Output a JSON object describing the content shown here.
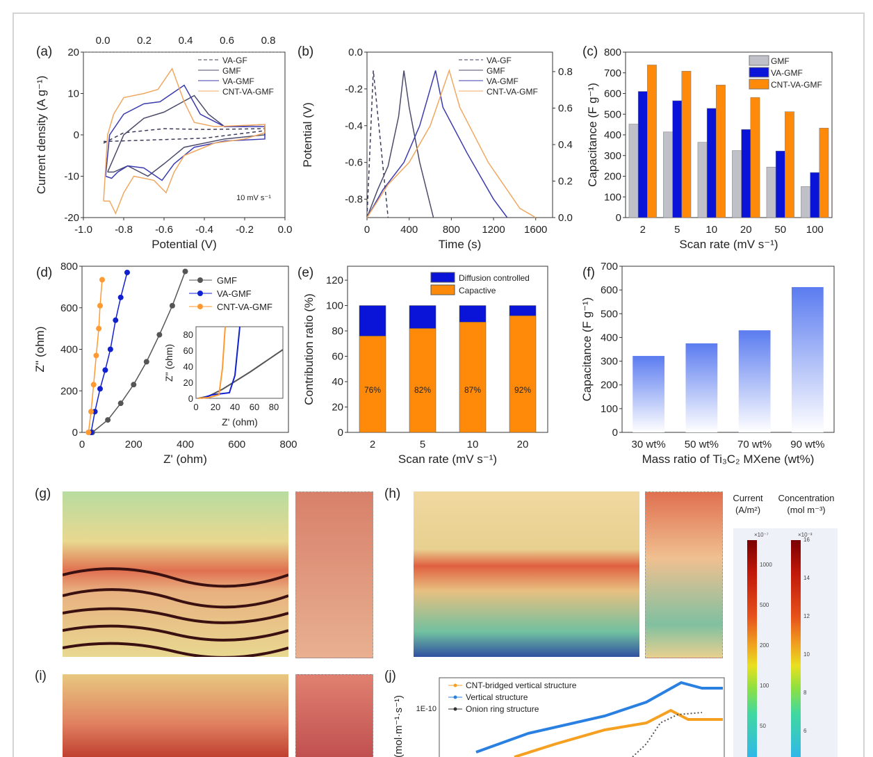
{
  "panel_labels": [
    "(a)",
    "(b)",
    "(c)",
    "(d)",
    "(e)",
    "(f)",
    "(g)",
    "(h)",
    "(i)",
    "(j)"
  ],
  "colorbars": {
    "current": {
      "title": "Current",
      "unit": "(A/m²)",
      "multiplier": "×10⁻⁷",
      "ticks": [
        "1000",
        "500",
        "200",
        "100",
        "50"
      ]
    },
    "concentration": {
      "title": "Concentration",
      "unit": "(mol m⁻³)",
      "multiplier": "×10⁻³",
      "ticks": [
        "16",
        "14",
        "12",
        "10",
        "8",
        "6"
      ]
    }
  },
  "colors": {
    "gmf": "#b8b8b8",
    "vagmf": "#0a14d8",
    "cnt": "#ff8a0a",
    "dark": "#4a4a6a",
    "blue_line": "#3b3bb0",
    "orange_line": "#f0a860"
  },
  "chart_data": [
    {
      "id": "a",
      "type": "line",
      "xlabel": "Potential (V)",
      "ylabel": "Current density (A g⁻¹)",
      "xlim": [
        -1.0,
        0.0
      ],
      "ylim": [
        -20,
        20
      ],
      "xticks": [
        "-1.0",
        "-0.8",
        "-0.6",
        "-0.4",
        "-0.2",
        "0.0"
      ],
      "yticks": [
        "-20",
        "-10",
        "0",
        "10",
        "20"
      ],
      "top_xticks": [
        "0.0",
        "0.2",
        "0.4",
        "0.6",
        "0.8"
      ],
      "annotation": "10 mV s⁻¹",
      "series": [
        {
          "name": "VA-GF",
          "dash": true,
          "color": "#3a3a5a",
          "points": [
            [
              -0.9,
              -2
            ],
            [
              -0.8,
              0.5
            ],
            [
              -0.6,
              1.5
            ],
            [
              -0.4,
              1.3
            ],
            [
              -0.1,
              1.5
            ],
            [
              -0.1,
              1
            ],
            [
              -0.4,
              -0.8
            ],
            [
              -0.7,
              -1.3
            ],
            [
              -0.9,
              -1.6
            ]
          ]
        },
        {
          "name": "GMF",
          "color": "#4a4a6a",
          "points": [
            [
              -0.88,
              -9
            ],
            [
              -0.8,
              0
            ],
            [
              -0.7,
              4
            ],
            [
              -0.6,
              5.5
            ],
            [
              -0.45,
              9.5
            ],
            [
              -0.38,
              5
            ],
            [
              -0.3,
              2
            ],
            [
              -0.1,
              2.5
            ],
            [
              -0.1,
              0
            ],
            [
              -0.3,
              -1
            ],
            [
              -0.5,
              -3
            ],
            [
              -0.6,
              -7
            ],
            [
              -0.68,
              -10
            ],
            [
              -0.78,
              -7.5
            ],
            [
              -0.85,
              -9
            ],
            [
              -0.88,
              -9
            ]
          ]
        },
        {
          "name": "VA-GMF",
          "color": "#3b3bb0",
          "points": [
            [
              -0.89,
              -10
            ],
            [
              -0.87,
              0
            ],
            [
              -0.8,
              5
            ],
            [
              -0.7,
              7.5
            ],
            [
              -0.62,
              8
            ],
            [
              -0.5,
              12
            ],
            [
              -0.42,
              5
            ],
            [
              -0.3,
              2
            ],
            [
              -0.1,
              2
            ],
            [
              -0.1,
              -1
            ],
            [
              -0.3,
              -1.5
            ],
            [
              -0.45,
              -3
            ],
            [
              -0.55,
              -7
            ],
            [
              -0.61,
              -11
            ],
            [
              -0.7,
              -8
            ],
            [
              -0.78,
              -7.5
            ],
            [
              -0.83,
              -9
            ],
            [
              -0.86,
              -10.5
            ],
            [
              -0.89,
              -10
            ]
          ]
        },
        {
          "name": "CNT-VA-GMF",
          "color": "#f0a860",
          "points": [
            [
              -0.9,
              -16
            ],
            [
              -0.88,
              0
            ],
            [
              -0.85,
              5
            ],
            [
              -0.8,
              9
            ],
            [
              -0.7,
              10
            ],
            [
              -0.63,
              11
            ],
            [
              -0.56,
              16
            ],
            [
              -0.5,
              8
            ],
            [
              -0.45,
              3
            ],
            [
              -0.35,
              2
            ],
            [
              -0.1,
              2.5
            ],
            [
              -0.1,
              0.5
            ],
            [
              -0.2,
              -1
            ],
            [
              -0.35,
              -2
            ],
            [
              -0.5,
              -5
            ],
            [
              -0.55,
              -9
            ],
            [
              -0.59,
              -14
            ],
            [
              -0.65,
              -11
            ],
            [
              -0.75,
              -10
            ],
            [
              -0.8,
              -14
            ],
            [
              -0.84,
              -19
            ],
            [
              -0.87,
              -16
            ],
            [
              -0.9,
              -16
            ]
          ]
        }
      ]
    },
    {
      "id": "b",
      "type": "line",
      "xlabel": "Time (s)",
      "ylabel": "Potential (V)",
      "xlim": [
        0,
        1760
      ],
      "ylim": [
        -0.9,
        0.0
      ],
      "xticks": [
        "0",
        "400",
        "800",
        "1200",
        "1600"
      ],
      "yticks": [
        "-0.8",
        "-0.6",
        "-0.4",
        "-0.2",
        "0.0"
      ],
      "right_yticks": [
        "0.0",
        "0.2",
        "0.4",
        "0.6",
        "0.8"
      ],
      "series": [
        {
          "name": "VA-GF",
          "dash": true,
          "color": "#3a3a5a",
          "points": [
            [
              0,
              -0.9
            ],
            [
              60,
              -0.1
            ],
            [
              200,
              -0.9
            ]
          ]
        },
        {
          "name": "GMF",
          "color": "#4a4a6a",
          "points": [
            [
              0,
              -0.9
            ],
            [
              100,
              -0.75
            ],
            [
              200,
              -0.62
            ],
            [
              300,
              -0.35
            ],
            [
              350,
              -0.1
            ],
            [
              400,
              -0.3
            ],
            [
              500,
              -0.6
            ],
            [
              630,
              -0.9
            ]
          ]
        },
        {
          "name": "VA-GMF",
          "color": "#3b3bb0",
          "points": [
            [
              0,
              -0.9
            ],
            [
              150,
              -0.75
            ],
            [
              350,
              -0.6
            ],
            [
              500,
              -0.4
            ],
            [
              650,
              -0.1
            ],
            [
              720,
              -0.3
            ],
            [
              950,
              -0.55
            ],
            [
              1200,
              -0.8
            ],
            [
              1330,
              -0.9
            ]
          ]
        },
        {
          "name": "CNT-VA-GMF",
          "color": "#f0a860",
          "points": [
            [
              0,
              -0.9
            ],
            [
              200,
              -0.72
            ],
            [
              400,
              -0.6
            ],
            [
              600,
              -0.4
            ],
            [
              780,
              -0.1
            ],
            [
              880,
              -0.3
            ],
            [
              1150,
              -0.6
            ],
            [
              1450,
              -0.85
            ],
            [
              1600,
              -0.9
            ]
          ]
        }
      ]
    },
    {
      "id": "c",
      "type": "bar",
      "xlabel": "Scan rate (mV s⁻¹)",
      "ylabel": "Capacitance (F g⁻¹)",
      "ylim": [
        0,
        800
      ],
      "categories": [
        "2",
        "5",
        "10",
        "20",
        "50",
        "100"
      ],
      "yticks": [
        "0",
        "100",
        "200",
        "300",
        "400",
        "500",
        "600",
        "700",
        "800"
      ],
      "series": [
        {
          "name": "GMF",
          "color": "#c0c0c8",
          "values": [
            452,
            414,
            364,
            324,
            244,
            150
          ]
        },
        {
          "name": "VA-GMF",
          "color": "#0a14d8",
          "values": [
            610,
            565,
            528,
            426,
            322,
            218
          ]
        },
        {
          "name": "CNT-VA-GMF",
          "color": "#ff8a0a",
          "values": [
            738,
            708,
            641,
            581,
            512,
            433
          ]
        }
      ]
    },
    {
      "id": "d",
      "type": "line",
      "xlabel": "Z' (ohm)",
      "ylabel": "Z'' (ohm)",
      "xlim": [
        0,
        800
      ],
      "ylim": [
        0,
        800
      ],
      "xticks": [
        "0",
        "200",
        "400",
        "600",
        "800"
      ],
      "yticks": [
        "0",
        "200",
        "400",
        "600",
        "800"
      ],
      "inset": {
        "xlabel": "Z' (ohm)",
        "ylabel": "Z'' (ohm)",
        "xticks": [
          "0",
          "20",
          "40",
          "60",
          "80"
        ],
        "yticks": [
          "0",
          "20",
          "40",
          "60",
          "80"
        ]
      },
      "series": [
        {
          "name": "GMF",
          "color": "#555",
          "points": [
            [
              40,
              0
            ],
            [
              100,
              60
            ],
            [
              150,
              140
            ],
            [
              200,
              230
            ],
            [
              250,
              340
            ],
            [
              300,
              470
            ],
            [
              350,
              610
            ],
            [
              400,
              775
            ]
          ]
        },
        {
          "name": "VA-GMF",
          "color": "#1020d0",
          "points": [
            [
              35,
              0
            ],
            [
              50,
              100
            ],
            [
              70,
              210
            ],
            [
              90,
              300
            ],
            [
              110,
              400
            ],
            [
              130,
              540
            ],
            [
              150,
              650
            ],
            [
              175,
              770
            ]
          ]
        },
        {
          "name": "CNT-VA-GMF",
          "color": "#ff9a30",
          "points": [
            [
              25,
              0
            ],
            [
              35,
              100
            ],
            [
              45,
              230
            ],
            [
              55,
              370
            ],
            [
              65,
              500
            ],
            [
              70,
              610
            ],
            [
              78,
              735
            ]
          ]
        }
      ]
    },
    {
      "id": "e",
      "type": "stacked_bar",
      "xlabel": "Scan rate (mV s⁻¹)",
      "ylabel": "Contribution ratio (%)",
      "ylim": [
        0,
        131
      ],
      "categories": [
        "2",
        "5",
        "10",
        "20"
      ],
      "yticks": [
        "0",
        "20",
        "40",
        "60",
        "80",
        "100",
        "120"
      ],
      "series": [
        {
          "name": "Capactive",
          "color": "#ff8a0a",
          "values": [
            76,
            82,
            87,
            92
          ]
        },
        {
          "name": "Diffusion controlled",
          "color": "#0a14d8",
          "values": [
            24,
            18,
            13,
            8
          ]
        }
      ],
      "labels": [
        "76%",
        "82%",
        "87%",
        "92%"
      ]
    },
    {
      "id": "f",
      "type": "bar",
      "xlabel": "Mass ratio of Ti₃C₂ MXene (wt%)",
      "ylabel": "Capacitance (F g⁻¹)",
      "ylim": [
        0,
        700
      ],
      "categories": [
        "30 wt%",
        "50 wt%",
        "70 wt%",
        "90 wt%"
      ],
      "yticks": [
        "0",
        "100",
        "200",
        "300",
        "400",
        "500",
        "600",
        "700"
      ],
      "series": [
        {
          "name": "Capacitance",
          "color": "#5b7cf0",
          "values": [
            322,
            375,
            430,
            612
          ]
        }
      ]
    },
    {
      "id": "j",
      "type": "line",
      "ylabel": "(mol·m⁻¹·s⁻¹)",
      "ytick": "1E-10",
      "series": [
        {
          "name": "CNT-bridged vertical structure",
          "color": "#f5a020"
        },
        {
          "name": "Vertical structure",
          "color": "#2a80e0"
        },
        {
          "name": "Onion ring structure",
          "color": "#333"
        }
      ]
    }
  ]
}
